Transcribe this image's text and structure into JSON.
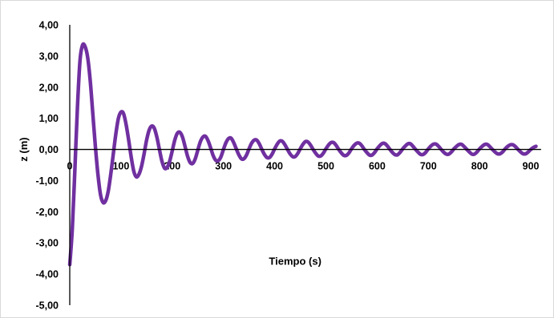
{
  "chart_data": {
    "type": "line",
    "title": "",
    "xlabel": "Tiempo (s)",
    "ylabel": "z (m)",
    "xlim": [
      0,
      920
    ],
    "ylim": [
      -5,
      4
    ],
    "x_ticks": [
      "0",
      "100",
      "200",
      "300",
      "400",
      "500",
      "600",
      "700",
      "800",
      "900"
    ],
    "y_ticks": [
      "4,00",
      "3,00",
      "2,00",
      "1,00",
      "0,00",
      "-1,00",
      "-2,00",
      "-3,00",
      "-4,00",
      "-5,00"
    ],
    "grid": false,
    "legend": "none",
    "line_color": "#7030a0",
    "series": [
      {
        "x": [
          0,
          5,
          10,
          15,
          20,
          25,
          30,
          35,
          40,
          45,
          50,
          55,
          60,
          65,
          70,
          75,
          80,
          85,
          90,
          95,
          100,
          105,
          110,
          115,
          120,
          125,
          130,
          135,
          140,
          145,
          150,
          155,
          160,
          165,
          170,
          175,
          180,
          185,
          190,
          195,
          200,
          205,
          210,
          215,
          220,
          225,
          230,
          235,
          240,
          245,
          250,
          255,
          260,
          265,
          270,
          275,
          280,
          285,
          290,
          295,
          300,
          305,
          310,
          315,
          320,
          325,
          330,
          335,
          340,
          345,
          350,
          355,
          360,
          365,
          370,
          375,
          380,
          385,
          390,
          395,
          400,
          405,
          410,
          415,
          420,
          425,
          430,
          435,
          440,
          445,
          450,
          455,
          460,
          465,
          470,
          475,
          480,
          485,
          490,
          495,
          500,
          505,
          510,
          515,
          520,
          525,
          530,
          535,
          540,
          545,
          550,
          555,
          560,
          565,
          570,
          575,
          580,
          585,
          590,
          595,
          600,
          605,
          610,
          615,
          620,
          625,
          630,
          635,
          640,
          645,
          650,
          655,
          660,
          665,
          670,
          675,
          680,
          685,
          690,
          695,
          700,
          705,
          710,
          715,
          720,
          725,
          730,
          735,
          740,
          745,
          750,
          755,
          760,
          765,
          770,
          775,
          780,
          785,
          790,
          795,
          800,
          805,
          810,
          815,
          820,
          825,
          830,
          835,
          840,
          845,
          850,
          855,
          860,
          865,
          870,
          875,
          880,
          885,
          890,
          895,
          900,
          905,
          910
        ],
        "y": [
          -3.7,
          -2.55,
          -0.65,
          1.35,
          2.85,
          3.35,
          3.3,
          2.95,
          2.2,
          1.15,
          0.1,
          -0.8,
          -1.45,
          -1.7,
          -1.65,
          -1.35,
          -0.8,
          -0.15,
          0.5,
          1.0,
          1.2,
          1.15,
          0.8,
          0.3,
          -0.25,
          -0.7,
          -0.88,
          -0.8,
          -0.55,
          -0.15,
          0.3,
          0.62,
          0.75,
          0.68,
          0.4,
          0.0,
          -0.38,
          -0.6,
          -0.58,
          -0.38,
          -0.05,
          0.3,
          0.52,
          0.55,
          0.4,
          0.1,
          -0.22,
          -0.42,
          -0.45,
          -0.3,
          -0.02,
          0.25,
          0.4,
          0.42,
          0.28,
          0.05,
          -0.2,
          -0.35,
          -0.36,
          -0.24,
          0.0,
          0.22,
          0.35,
          0.36,
          0.22,
          0.02,
          -0.17,
          -0.3,
          -0.3,
          -0.18,
          0.02,
          0.2,
          0.3,
          0.3,
          0.18,
          0.0,
          -0.16,
          -0.26,
          -0.26,
          -0.15,
          0.02,
          0.17,
          0.27,
          0.26,
          0.15,
          0.0,
          -0.14,
          -0.23,
          -0.23,
          -0.13,
          0.02,
          0.16,
          0.25,
          0.24,
          0.14,
          0.0,
          -0.12,
          -0.21,
          -0.21,
          -0.12,
          0.02,
          0.14,
          0.22,
          0.22,
          0.13,
          0.0,
          -0.11,
          -0.19,
          -0.19,
          -0.11,
          0.02,
          0.13,
          0.2,
          0.2,
          0.12,
          0.0,
          -0.1,
          -0.18,
          -0.18,
          -0.1,
          0.02,
          0.12,
          0.19,
          0.19,
          0.11,
          0.0,
          -0.1,
          -0.17,
          -0.17,
          -0.09,
          0.02,
          0.11,
          0.18,
          0.18,
          0.1,
          0.0,
          -0.09,
          -0.16,
          -0.16,
          -0.09,
          0.02,
          0.11,
          0.17,
          0.17,
          0.1,
          0.0,
          -0.09,
          -0.15,
          -0.15,
          -0.08,
          0.02,
          0.1,
          0.16,
          0.16,
          0.09,
          0.0,
          -0.08,
          -0.15,
          -0.15,
          -0.08,
          0.02,
          0.1,
          0.16,
          0.16,
          0.09,
          0.0,
          -0.08,
          -0.14,
          -0.14,
          -0.08,
          0.02,
          0.1,
          0.15,
          0.15,
          0.09,
          0.0,
          -0.08,
          -0.14,
          -0.14,
          -0.08,
          0.0,
          0.06,
          0.1
        ]
      }
    ]
  }
}
